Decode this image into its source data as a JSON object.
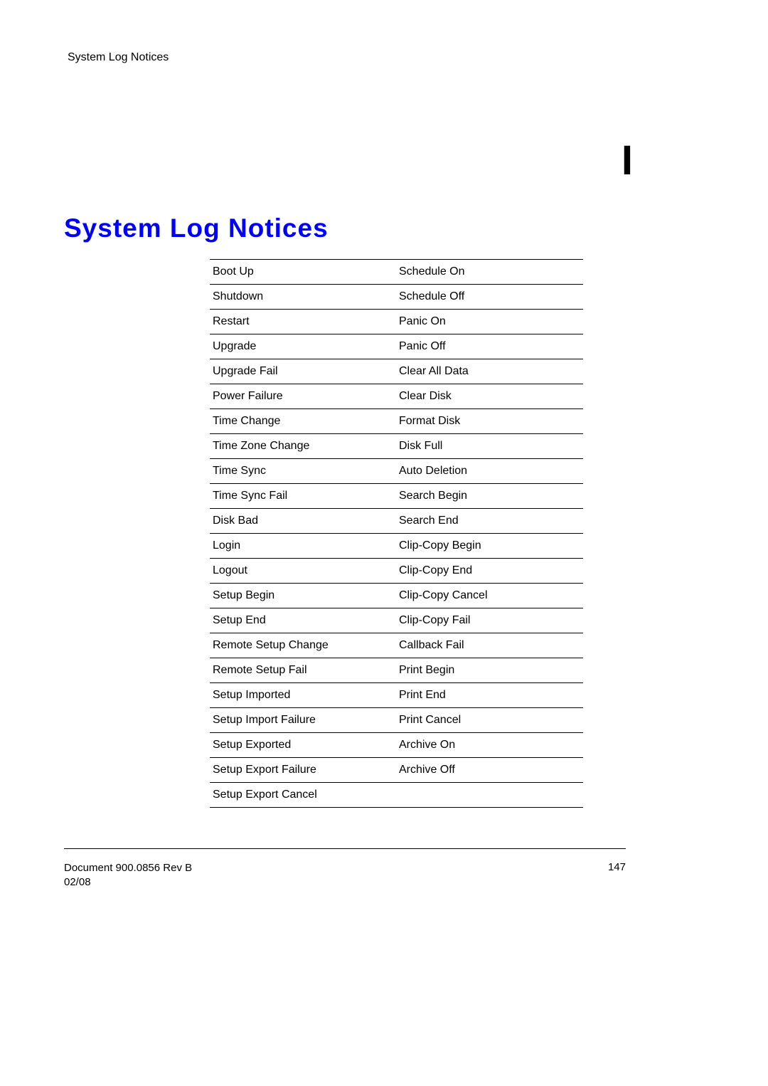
{
  "header": {
    "text": "System Log Notices"
  },
  "chapter_mark": "I",
  "title": "System Log Notices",
  "table": {
    "rows": [
      {
        "left": "Boot Up",
        "right": "Schedule On"
      },
      {
        "left": "Shutdown",
        "right": "Schedule Off"
      },
      {
        "left": "Restart",
        "right": "Panic On"
      },
      {
        "left": "Upgrade",
        "right": "Panic Off"
      },
      {
        "left": "Upgrade Fail",
        "right": "Clear All Data"
      },
      {
        "left": "Power Failure",
        "right": "Clear Disk"
      },
      {
        "left": "Time Change",
        "right": "Format Disk"
      },
      {
        "left": "Time Zone Change",
        "right": "Disk Full"
      },
      {
        "left": "Time Sync",
        "right": "Auto Deletion"
      },
      {
        "left": "Time Sync Fail",
        "right": "Search Begin"
      },
      {
        "left": "Disk Bad",
        "right": "Search End"
      },
      {
        "left": "Login",
        "right": "Clip-Copy Begin"
      },
      {
        "left": "Logout",
        "right": "Clip-Copy End"
      },
      {
        "left": "Setup Begin",
        "right": "Clip-Copy Cancel"
      },
      {
        "left": "Setup End",
        "right": "Clip-Copy Fail"
      },
      {
        "left": "Remote Setup Change",
        "right": "Callback Fail"
      },
      {
        "left": "Remote Setup Fail",
        "right": "Print Begin"
      },
      {
        "left": "Setup Imported",
        "right": "Print End"
      },
      {
        "left": "Setup Import Failure",
        "right": "Print Cancel"
      },
      {
        "left": "Setup Exported",
        "right": "Archive On"
      },
      {
        "left": "Setup Export Failure",
        "right": "Archive Off"
      },
      {
        "left": "Setup Export Cancel",
        "right": ""
      }
    ]
  },
  "footer": {
    "doc_line1": "Document 900.0856 Rev B",
    "doc_line2": "02/08",
    "page_number": "147"
  }
}
